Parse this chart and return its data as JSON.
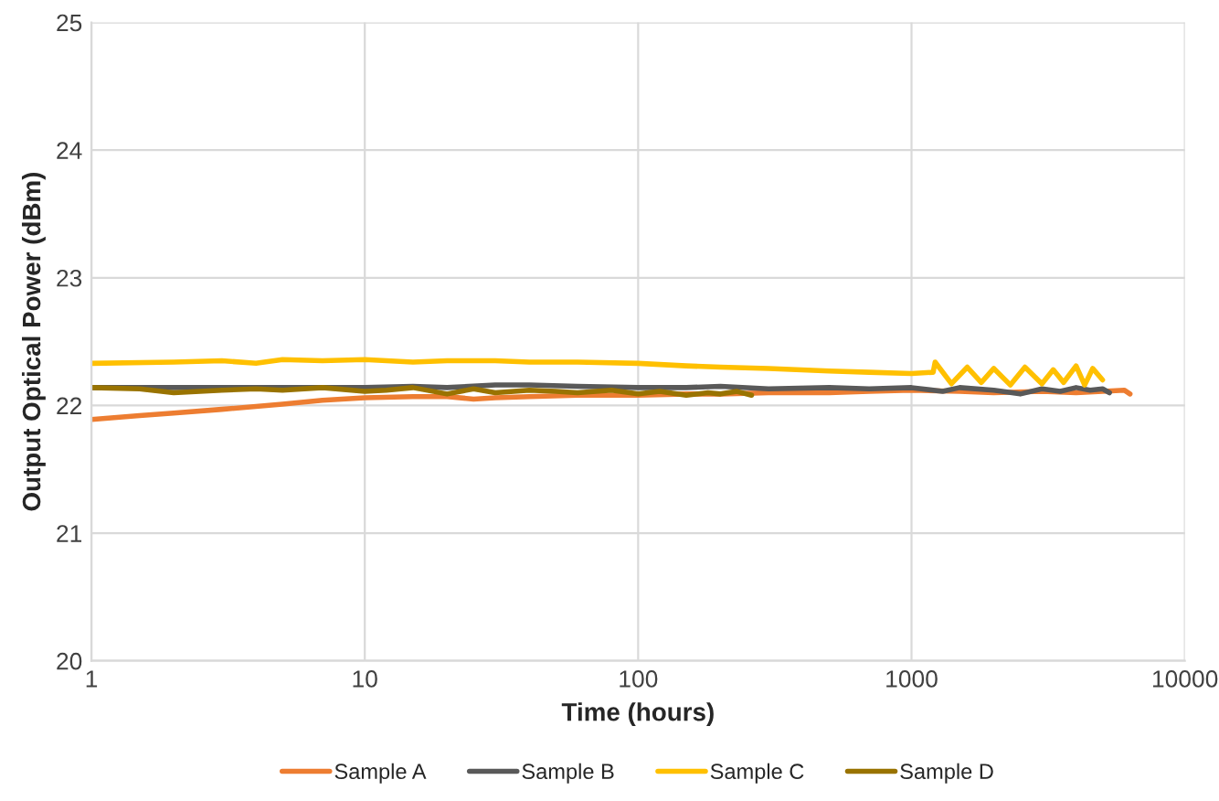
{
  "chart_data": {
    "type": "line",
    "xlabel": "Time (hours)",
    "ylabel": "Output Optical Power (dBm)",
    "log": "x",
    "xlim": [
      1,
      10000
    ],
    "xticks": [
      1,
      10,
      100,
      1000,
      10000
    ],
    "ylim": [
      20,
      25
    ],
    "yticks": [
      20,
      21,
      22,
      23,
      24,
      25
    ],
    "grid": true,
    "legend": "bottom",
    "marker": "none",
    "line_style": "solid",
    "series": [
      {
        "name": "Sample A",
        "color": "#ed7d31",
        "x": [
          1,
          1.5,
          2,
          3,
          5,
          7,
          10,
          15,
          20,
          25,
          30,
          40,
          60,
          100,
          150,
          200,
          300,
          500,
          700,
          1000,
          1500,
          2000,
          3000,
          4000,
          5000,
          6000,
          6300
        ],
        "values": [
          21.89,
          21.92,
          21.94,
          21.97,
          22.01,
          22.04,
          22.06,
          22.07,
          22.07,
          22.05,
          22.06,
          22.07,
          22.08,
          22.08,
          22.09,
          22.09,
          22.1,
          22.1,
          22.11,
          22.12,
          22.11,
          22.1,
          22.11,
          22.1,
          22.11,
          22.12,
          22.09
        ]
      },
      {
        "name": "Sample B",
        "color": "#595959",
        "x": [
          1,
          2,
          3,
          5,
          10,
          15,
          20,
          30,
          40,
          60,
          100,
          150,
          200,
          300,
          500,
          700,
          1000,
          1300,
          1500,
          2000,
          2500,
          3000,
          3500,
          4000,
          4500,
          5000,
          5300
        ],
        "values": [
          22.14,
          22.14,
          22.14,
          22.14,
          22.14,
          22.15,
          22.14,
          22.16,
          22.16,
          22.15,
          22.14,
          22.14,
          22.15,
          22.13,
          22.14,
          22.13,
          22.14,
          22.11,
          22.14,
          22.12,
          22.09,
          22.13,
          22.11,
          22.14,
          22.12,
          22.13,
          22.1
        ]
      },
      {
        "name": "Sample C",
        "color": "#ffc000",
        "x": [
          1,
          2,
          3,
          4,
          5,
          7,
          10,
          15,
          20,
          30,
          40,
          60,
          100,
          150,
          200,
          300,
          500,
          700,
          1000,
          1200,
          1220,
          1400,
          1600,
          1800,
          2000,
          2300,
          2600,
          3000,
          3300,
          3600,
          4000,
          4300,
          4600,
          5000
        ],
        "values": [
          22.33,
          22.34,
          22.35,
          22.33,
          22.36,
          22.35,
          22.36,
          22.34,
          22.35,
          22.35,
          22.34,
          22.34,
          22.33,
          22.31,
          22.3,
          22.29,
          22.27,
          22.26,
          22.25,
          22.26,
          22.34,
          22.17,
          22.3,
          22.18,
          22.29,
          22.16,
          22.3,
          22.17,
          22.28,
          22.18,
          22.31,
          22.16,
          22.29,
          22.2
        ]
      },
      {
        "name": "Sample D",
        "color": "#997300",
        "x": [
          1,
          1.5,
          2,
          3,
          4,
          5,
          7,
          10,
          12,
          15,
          20,
          25,
          30,
          40,
          50,
          60,
          80,
          100,
          120,
          150,
          180,
          200,
          230,
          260
        ],
        "values": [
          22.14,
          22.13,
          22.1,
          22.12,
          22.13,
          22.12,
          22.14,
          22.11,
          22.12,
          22.14,
          22.09,
          22.13,
          22.1,
          22.12,
          22.11,
          22.1,
          22.12,
          22.09,
          22.11,
          22.08,
          22.1,
          22.09,
          22.11,
          22.08
        ]
      }
    ]
  }
}
